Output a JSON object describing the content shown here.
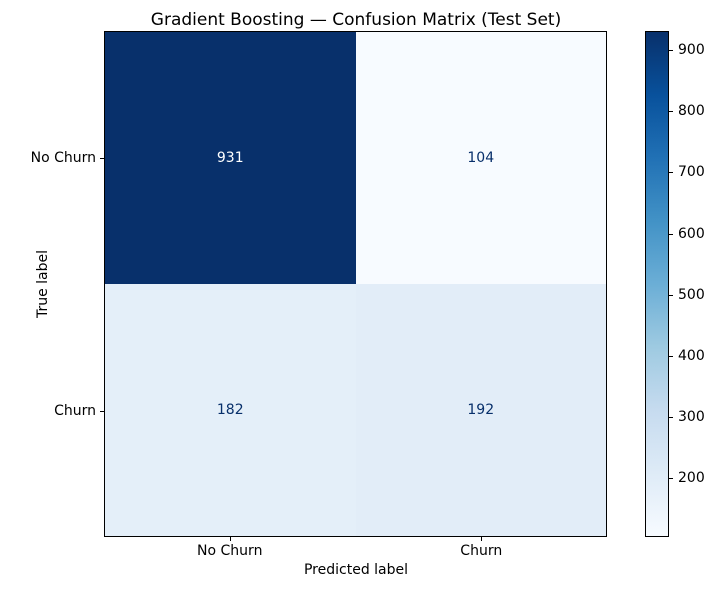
{
  "chart_data": {
    "type": "heatmap",
    "title": "Gradient Boosting — Confusion Matrix (Test Set)",
    "xlabel": "Predicted label",
    "ylabel": "True label",
    "x_tick_labels": [
      "No Churn",
      "Churn"
    ],
    "y_tick_labels": [
      "No Churn",
      "Churn"
    ],
    "matrix": [
      [
        931,
        104
      ],
      [
        182,
        192
      ]
    ],
    "vmin": 104,
    "vmax": 931,
    "colormap": "Blues",
    "grid": false,
    "legend_position": "right-colorbar",
    "colorbar_ticks": [
      200,
      300,
      400,
      500,
      600,
      700,
      800,
      900
    ],
    "cell_colors": [
      [
        "#08306b",
        "#f7fbff"
      ],
      [
        "#e4eff9",
        "#e2edf8"
      ]
    ],
    "cell_text_colors": [
      [
        "#ffffff",
        "#08306b"
      ],
      [
        "#08306b",
        "#08306b"
      ]
    ],
    "colormap_stops": [
      "#f7fbff",
      "#deebf7",
      "#c6dbef",
      "#9ecae1",
      "#6baed6",
      "#4292c6",
      "#2171b5",
      "#08519c",
      "#08306b"
    ],
    "text_color": "#000000"
  }
}
